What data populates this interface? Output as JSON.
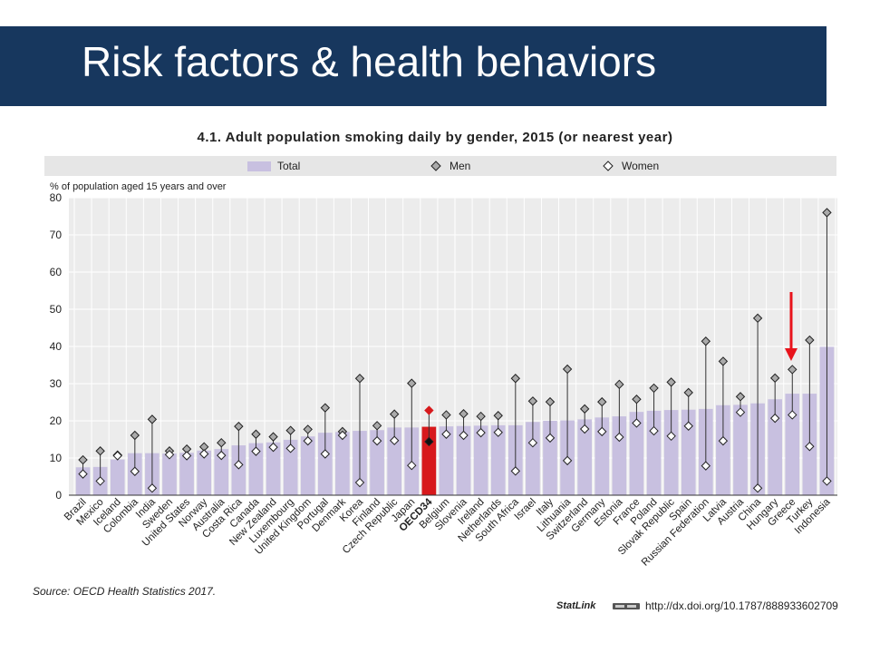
{
  "slide": {
    "title": "Risk factors & health behaviors",
    "colors": {
      "banner": "#17375e",
      "bar": "#c8c0e0",
      "highlight": "#d7191c"
    }
  },
  "footer": {
    "source": "Source: OECD Health Statistics 2017.",
    "statlink_label": "StatLink",
    "doi": "http://dx.doi.org/10.1787/888933602709"
  },
  "annotation": {
    "type": "red-down-arrow",
    "target": "Greece"
  },
  "chart_data": {
    "type": "bar",
    "title": "4.1. Adult population smoking daily by gender, 2015 (or nearest year)",
    "ylabel": "% of population aged 15 years and over",
    "ylim": [
      0,
      80
    ],
    "yticks": [
      0,
      10,
      20,
      30,
      40,
      50,
      60,
      70,
      80
    ],
    "grid": true,
    "legend": {
      "placement": "top",
      "entries": [
        "Total",
        "Men",
        "Women"
      ]
    },
    "highlight_category": "OECD34",
    "categories": [
      "Brazil",
      "Mexico",
      "Iceland",
      "Colombia",
      "India",
      "Sweden",
      "United States",
      "Norway",
      "Australia",
      "Costa Rica",
      "Canada",
      "New Zealand",
      "Luxembourg",
      "United Kingdom",
      "Portugal",
      "Denmark",
      "Korea",
      "Finland",
      "Czech Republic",
      "Japan",
      "OECD34",
      "Belgium",
      "Slovenia",
      "Ireland",
      "Netherlands",
      "South Africa",
      "Israel",
      "Italy",
      "Lithuania",
      "Switzerland",
      "Germany",
      "Estonia",
      "France",
      "Poland",
      "Slovak Republic",
      "Spain",
      "Russian Federation",
      "Latvia",
      "Austria",
      "China",
      "Hungary",
      "Greece",
      "Turkey",
      "Indonesia"
    ],
    "series": [
      {
        "name": "Total",
        "marker": "bar",
        "values": [
          7.5,
          7.6,
          9.6,
          11.3,
          11.3,
          11.2,
          11.4,
          12.0,
          12.4,
          13.4,
          14.0,
          14.2,
          14.9,
          15.8,
          16.8,
          17.0,
          17.3,
          17.5,
          18.2,
          18.2,
          18.4,
          18.5,
          18.6,
          18.7,
          18.8,
          18.8,
          19.7,
          20.0,
          20.1,
          20.4,
          20.9,
          21.2,
          22.4,
          22.7,
          22.9,
          23.0,
          23.2,
          24.2,
          24.3,
          24.7,
          25.8,
          27.3,
          27.3,
          39.9
        ]
      },
      {
        "name": "Men",
        "marker": "diamond-grey",
        "values": [
          9.5,
          11.9,
          10.8,
          16.1,
          20.4,
          11.9,
          12.4,
          13.0,
          14.1,
          18.5,
          16.4,
          15.7,
          17.4,
          17.7,
          23.5,
          17.1,
          31.4,
          18.7,
          21.8,
          30.1,
          22.8,
          21.6,
          21.9,
          21.2,
          21.4,
          31.4,
          25.3,
          25.1,
          33.9,
          23.2,
          25.1,
          29.8,
          25.8,
          28.8,
          30.4,
          27.6,
          41.4,
          36.0,
          26.5,
          47.6,
          31.5,
          33.8,
          41.7,
          76.0
        ]
      },
      {
        "name": "Women",
        "marker": "diamond-white",
        "values": [
          5.7,
          3.8,
          10.6,
          6.4,
          1.9,
          10.9,
          10.6,
          11.1,
          10.7,
          8.2,
          11.8,
          12.9,
          12.6,
          14.6,
          11.1,
          16.1,
          3.4,
          14.6,
          14.7,
          8.0,
          14.4,
          16.4,
          16.1,
          16.8,
          16.9,
          6.5,
          14.1,
          15.4,
          9.3,
          17.8,
          17.1,
          15.6,
          19.4,
          17.3,
          15.9,
          18.6,
          7.9,
          14.6,
          22.3,
          1.9,
          20.7,
          21.6,
          13.1,
          3.8
        ]
      }
    ]
  }
}
